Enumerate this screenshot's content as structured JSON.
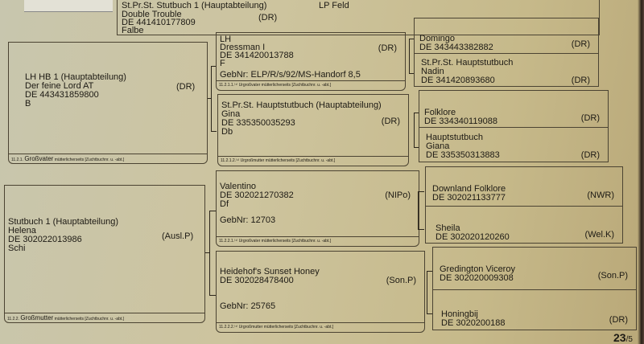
{
  "parent": {
    "line1": "St.Pr.St.   Stutbuch 1 (Hauptabteilung)",
    "name": "Double Trouble",
    "id": "DE 441410177809",
    "color": "Falbe",
    "reg": "(DR)",
    "extra": "LP Feld"
  },
  "grandfather": {
    "line1": "LH   HB 1 (Hauptabteilung)",
    "name": "Der feine Lord AT",
    "id": "DE 443431859800",
    "color": "B",
    "reg": "(DR)",
    "footer_num": "11.2.1.",
    "footer_title": "Großvater",
    "footer_note": "mütterlicherseits [Zuchtbuchnr. u. -abt.]"
  },
  "grandmother": {
    "line1": "Stutbuch 1 (Hauptabteilung)",
    "name": "Helena",
    "id": "DE 302022013986",
    "color": "Schi",
    "reg": "(Ausl.P)",
    "footer_num": "11.2.2.",
    "footer_title": "Großmutter",
    "footer_note": "mütterlicherseits [Zuchtbuchnr. u. -abt.]"
  },
  "great": [
    {
      "line1": "LH",
      "name": "Dressman I",
      "id": "DE 341420013788",
      "color": "F",
      "reg": "(DR)",
      "gebnr": "GebNr:  ELP/R/s/92/MS-Handorf 8,5",
      "footer": "11.2.1.1.⁽¹⁾ Urgroßvater mütterlicherseits [Zuchtbuchnr. u. -abt.]"
    },
    {
      "line1": "St.Pr.St.   Hauptstutbuch (Hauptabteilung)",
      "name": "Gina",
      "id": "DE 335350035293",
      "color": "Db",
      "reg": "(DR)",
      "gebnr": "",
      "footer": "11.2.1.2.⁽¹⁾ Urgroßmutter mütterlicherseits [Zuchtbuchnr. u. -abt.]"
    },
    {
      "line1": "",
      "name": "Valentino",
      "id": "DE 302021270382",
      "color": "Df",
      "reg": "(NIPo)",
      "gebnr": "GebNr:   12703",
      "footer": "11.2.2.1.⁽¹⁾ Urgroßvater mütterlicherseits [Zuchtbuchnr. u. -abt.]"
    },
    {
      "line1": "",
      "name": "Heidehof's Sunset Honey",
      "id": "DE 302028478400",
      "color": "",
      "reg": "(Son.P)",
      "gebnr": "GebNr:   25765",
      "footer": "11.2.2.2.⁽¹⁾ Urgroßmutter mütterlicherseits [Zuchtbuchnr. u. -abt.]"
    }
  ],
  "ancestors": [
    {
      "sire": {
        "name": "Domingo",
        "id": "DE 343443382882",
        "reg": "(DR)"
      },
      "dam": {
        "line1": "St.Pr.St.   Hauptstutbuch",
        "name": "Nadin",
        "id": "DE 341420893680",
        "reg": "(DR)"
      }
    },
    {
      "sire": {
        "name": "Folklore",
        "id": "DE 334340119088",
        "reg": "(DR)"
      },
      "dam": {
        "line1": "Hauptstutbuch",
        "name": "Giana",
        "id": "DE 335350313883",
        "reg": "(DR)"
      }
    },
    {
      "sire": {
        "name": "Downland Folklore",
        "id": "DE 302021133777",
        "reg": "(NWR)"
      },
      "dam": {
        "line1": "",
        "name": "Sheila",
        "id": "DE 302020120260",
        "reg": "(Wel.K)"
      }
    },
    {
      "sire": {
        "name": "Gredington Viceroy",
        "id": "DE 302020009308",
        "reg": "(Son.P)"
      },
      "dam": {
        "line1": "",
        "name": "Honingbij",
        "id": "DE 3020200188",
        "reg": "(DR)"
      }
    }
  ],
  "page": {
    "number": "23",
    "total": "/5"
  }
}
